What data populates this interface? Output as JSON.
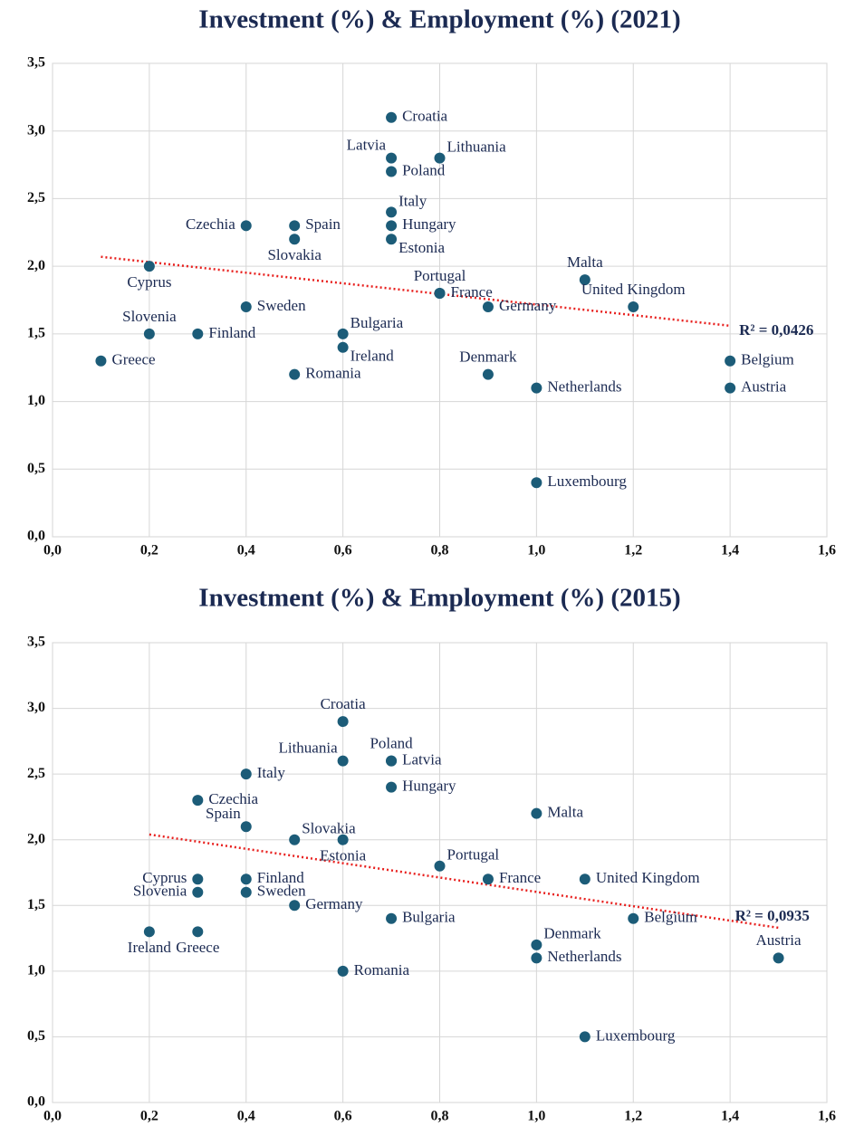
{
  "chart_data": [
    {
      "type": "scatter",
      "title": "Investment (%) & Employment (%) (2021)",
      "point_color": "#1c5c78",
      "point_labels": [
        "Croatia",
        "Latvia",
        "Lithuania",
        "Poland",
        "Italy",
        "Hungary",
        "Estonia",
        "Czechia",
        "Spain",
        "Slovakia",
        "Cyprus",
        "Malta",
        "Portugal",
        "France",
        "Germany",
        "United Kingdom",
        "Sweden",
        "Slovenia",
        "Finland",
        "Bulgaria",
        "Ireland",
        "Greece",
        "Romania",
        "Denmark",
        "Netherlands",
        "Belgium",
        "Austria",
        "Luxembourg"
      ],
      "x": [
        0.7,
        0.7,
        0.8,
        0.7,
        0.7,
        0.7,
        0.7,
        0.4,
        0.5,
        0.5,
        0.2,
        1.1,
        0.8,
        0.8,
        0.9,
        1.2,
        0.4,
        0.2,
        0.3,
        0.6,
        0.6,
        0.1,
        0.5,
        0.9,
        1.0,
        1.4,
        1.4,
        1.0
      ],
      "values": [
        3.1,
        2.8,
        2.8,
        2.7,
        2.4,
        2.3,
        2.2,
        2.3,
        2.3,
        2.2,
        2.0,
        1.9,
        1.8,
        1.8,
        1.7,
        1.7,
        1.7,
        1.5,
        1.5,
        1.5,
        1.4,
        1.3,
        1.2,
        1.2,
        1.1,
        1.3,
        1.1,
        0.4
      ],
      "trendline": {
        "x": [
          0.1,
          1.4
        ],
        "values": [
          2.07,
          1.56
        ],
        "color": "#e8201e",
        "annotation": "R² = 0,0426"
      },
      "xlim": [
        0,
        1.6
      ],
      "ylim": [
        0,
        3.5
      ],
      "grid": true,
      "xticks": [
        {
          "value": 0,
          "label": "0,0"
        },
        {
          "value": 0.2,
          "label": "0,2"
        },
        {
          "value": 0.4,
          "label": "0,4"
        },
        {
          "value": 0.6,
          "label": "0,6"
        },
        {
          "value": 0.8,
          "label": "0,8"
        },
        {
          "value": 1.0,
          "label": "1,0"
        },
        {
          "value": 1.2,
          "label": "1,2"
        },
        {
          "value": 1.4,
          "label": "1,4"
        },
        {
          "value": 1.6,
          "label": "1,6"
        }
      ],
      "yticks": [
        {
          "value": 0,
          "label": "0,0"
        },
        {
          "value": 0.5,
          "label": "0,5"
        },
        {
          "value": 1.0,
          "label": "1,0"
        },
        {
          "value": 1.5,
          "label": "1,5"
        },
        {
          "value": 2.0,
          "label": "2,0"
        },
        {
          "value": 2.5,
          "label": "2,5"
        },
        {
          "value": 3.0,
          "label": "3,0"
        },
        {
          "value": 3.5,
          "label": "3,5"
        }
      ]
    },
    {
      "type": "scatter",
      "title": "Investment (%) & Employment (%) (2015)",
      "point_color": "#1c5c78",
      "point_labels": [
        "Croatia",
        "Lithuania",
        "Poland",
        "Latvia",
        "Italy",
        "Hungary",
        "Czechia",
        "Malta",
        "Spain",
        "Slovakia",
        "Estonia",
        "Portugal",
        "France",
        "United Kingdom",
        "Cyprus",
        "Finland",
        "Slovenia",
        "Sweden",
        "Germany",
        "Bulgaria",
        "Belgium",
        "Ireland",
        "Greece",
        "Denmark",
        "Netherlands",
        "Austria",
        "Romania",
        "Luxembourg"
      ],
      "x": [
        0.6,
        0.6,
        0.7,
        0.7,
        0.4,
        0.7,
        0.3,
        1.0,
        0.4,
        0.5,
        0.6,
        0.8,
        0.9,
        1.1,
        0.3,
        0.4,
        0.3,
        0.4,
        0.5,
        0.7,
        1.2,
        0.2,
        0.3,
        1.0,
        1.0,
        1.5,
        0.6,
        1.1
      ],
      "values": [
        2.9,
        2.6,
        2.6,
        2.6,
        2.5,
        2.4,
        2.3,
        2.2,
        2.1,
        2.0,
        2.0,
        1.8,
        1.7,
        1.7,
        1.7,
        1.7,
        1.6,
        1.6,
        1.5,
        1.4,
        1.4,
        1.3,
        1.3,
        1.2,
        1.1,
        1.1,
        1.0,
        0.5
      ],
      "trendline": {
        "x": [
          0.2,
          1.5
        ],
        "values": [
          2.04,
          1.33
        ],
        "color": "#e8201e",
        "annotation": "R² = 0,0935"
      },
      "xlim": [
        0,
        1.6
      ],
      "ylim": [
        0,
        3.5
      ],
      "grid": true,
      "xticks": [
        {
          "value": 0,
          "label": "0,0"
        },
        {
          "value": 0.2,
          "label": "0,2"
        },
        {
          "value": 0.4,
          "label": "0,4"
        },
        {
          "value": 0.6,
          "label": "0,6"
        },
        {
          "value": 0.8,
          "label": "0,8"
        },
        {
          "value": 1.0,
          "label": "1,0"
        },
        {
          "value": 1.2,
          "label": "1,2"
        },
        {
          "value": 1.4,
          "label": "1,4"
        },
        {
          "value": 1.6,
          "label": "1,6"
        }
      ],
      "yticks": [
        {
          "value": 0,
          "label": "0,0"
        },
        {
          "value": 0.5,
          "label": "0,5"
        },
        {
          "value": 1.0,
          "label": "1,0"
        },
        {
          "value": 1.5,
          "label": "1,5"
        },
        {
          "value": 2.0,
          "label": "2,0"
        },
        {
          "value": 2.5,
          "label": "2,5"
        },
        {
          "value": 3.0,
          "label": "3,0"
        },
        {
          "value": 3.5,
          "label": "3,5"
        }
      ]
    }
  ]
}
